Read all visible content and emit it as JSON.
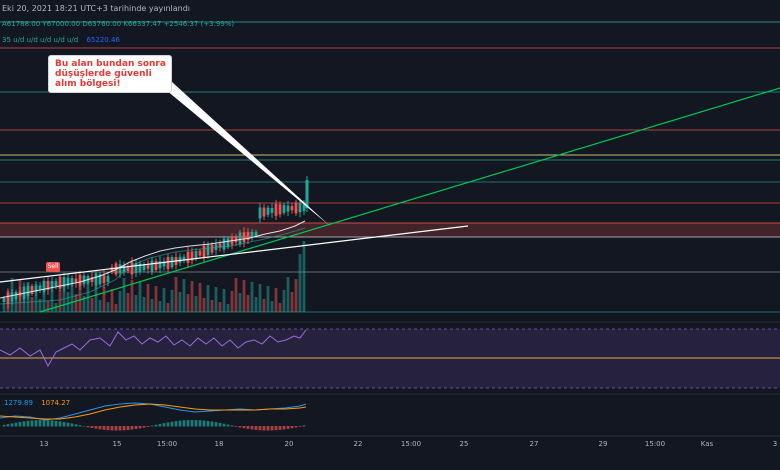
{
  "header": {
    "published": "Eki 20, 2021 18:21 UTC+3 tarihinde yayınlandı",
    "ohlc": "A61788.00  Y67000.00  D63760.00  K66337.47  +2546.37 (+3.99%)",
    "indicator_prefix": "35  u/d  u/d  u/d  u/d  u/d",
    "indicator_value": "65220.46"
  },
  "annotation": {
    "text": "Bu alan bundan sonra\ndüşüşlerde güvenli\nalım bölgesi!",
    "color": "#e53935"
  },
  "sell_label": "Sell",
  "macd": {
    "macd_value": "1279.89",
    "signal_value": "1074.27"
  },
  "x_axis": {
    "labels": [
      "13",
      "15",
      "15:00",
      "18",
      "20",
      "22",
      "15:00",
      "25",
      "27",
      "29",
      "15:00",
      "Kas",
      "3"
    ]
  },
  "colors": {
    "background": "#131722",
    "up": "#26a69a",
    "down": "#ef5350",
    "trendline": "#00c853",
    "rsi_band": "#7e57c2",
    "rsi_mid": "#ffb74d"
  },
  "chart_data": {
    "type": "candlestick",
    "candles_up": [
      true,
      false,
      true,
      true,
      false,
      true,
      true,
      false,
      true,
      true,
      true,
      false,
      true,
      true,
      false,
      true,
      true,
      true,
      false,
      false,
      true,
      true,
      false,
      true,
      true,
      false,
      true,
      false,
      false,
      true,
      true,
      false,
      false,
      true,
      true,
      true,
      false,
      true,
      false,
      true,
      true,
      false,
      true,
      false,
      true,
      true,
      false,
      false,
      true,
      false,
      false,
      true,
      false,
      true,
      false,
      true,
      true,
      false,
      false,
      true,
      false,
      false,
      true,
      true,
      true,
      false,
      true,
      true,
      false,
      false,
      true,
      true,
      false,
      false,
      true,
      true
    ]
  }
}
